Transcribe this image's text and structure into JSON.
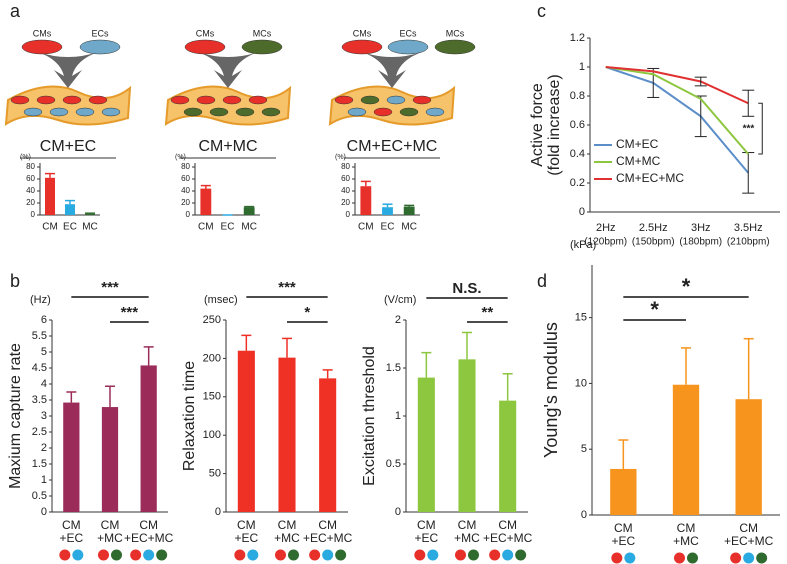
{
  "panel_labels": [
    "a",
    "b",
    "c",
    "d"
  ],
  "chart_data": [
    {
      "type": "bar",
      "title": "CM+EC",
      "cell_labels": [
        "CMs",
        "ECs"
      ],
      "ylabel": "(%)",
      "categories": [
        "CM",
        "EC",
        "MC"
      ],
      "values": [
        62,
        18,
        2
      ],
      "errors": [
        7,
        6,
        1
      ],
      "colors": [
        "#e8302a",
        "#29aae1",
        "#2f6b2f"
      ],
      "ylim": [
        0,
        80
      ],
      "yticks": [
        0,
        20,
        40,
        60,
        80
      ]
    },
    {
      "type": "bar",
      "title": "CM+MC",
      "cell_labels": [
        "CMs",
        "MCs"
      ],
      "ylabel": "(%)",
      "categories": [
        "CM",
        "EC",
        "MC"
      ],
      "values": [
        44,
        0,
        13
      ],
      "errors": [
        5,
        0,
        1
      ],
      "colors": [
        "#e8302a",
        "#29aae1",
        "#2f6b2f"
      ],
      "ylim": [
        0,
        80
      ],
      "yticks": [
        0,
        20,
        40,
        60,
        80
      ]
    },
    {
      "type": "bar",
      "title": "CM+EC+MC",
      "cell_labels": [
        "CMs",
        "ECs",
        "MCs"
      ],
      "ylabel": "(%)",
      "categories": [
        "CM",
        "EC",
        "MC"
      ],
      "values": [
        48,
        13,
        14
      ],
      "errors": [
        8,
        5,
        2
      ],
      "colors": [
        "#e8302a",
        "#29aae1",
        "#2f6b2f"
      ],
      "ylim": [
        0,
        80
      ],
      "yticks": [
        0,
        20,
        40,
        60,
        80
      ]
    },
    {
      "type": "line",
      "ylabel": [
        "Active force",
        "(fold increase)"
      ],
      "categories": [
        "2Hz",
        "2.5Hz",
        "3Hz",
        "3.5Hz"
      ],
      "category_notes": [
        "(120bpm)",
        "(150bpm)",
        "(180bpm)",
        "(210bpm)"
      ],
      "series": [
        {
          "name": "CM+EC",
          "color": "#5b8ec9",
          "values": [
            1,
            0.89,
            0.66,
            0.27
          ],
          "errors": [
            null,
            0.1,
            0.14,
            0.14
          ]
        },
        {
          "name": "CM+MC",
          "color": "#8dc63f",
          "values": [
            1,
            0.95,
            0.78,
            0.4
          ]
        },
        {
          "name": "CM+EC+MC",
          "color": "#e03030",
          "values": [
            1,
            0.97,
            0.9,
            0.75
          ],
          "errors": [
            null,
            null,
            0.03,
            0.09
          ]
        }
      ],
      "ylim": [
        0,
        1.2
      ],
      "yticks": [
        0,
        0.2,
        0.4,
        0.6,
        0.8,
        1,
        1.2
      ],
      "annotations": [
        "***"
      ]
    },
    {
      "type": "bar",
      "ylabel": "Maxium capture rate",
      "unit": "(Hz)",
      "categories": [
        [
          "CM",
          "+EC"
        ],
        [
          "CM",
          "+MC"
        ],
        [
          "CM",
          "+EC+MC"
        ]
      ],
      "values": [
        3.42,
        3.28,
        4.58
      ],
      "errors": [
        0.33,
        0.65,
        0.58
      ],
      "color": "#9b2c5a",
      "ylim": [
        0,
        6
      ],
      "yticks": [
        0,
        0.5,
        1,
        1.5,
        2,
        2.5,
        3,
        3.5,
        4,
        4.5,
        5,
        5.5,
        6
      ],
      "annotations": [
        "***",
        "***"
      ]
    },
    {
      "type": "bar",
      "ylabel": "Relaxation time",
      "unit": "(msec)",
      "categories": [
        [
          "CM",
          "+EC"
        ],
        [
          "CM",
          "+MC"
        ],
        [
          "CM",
          "+EC+MC"
        ]
      ],
      "values": [
        210,
        201,
        174
      ],
      "errors": [
        20,
        25,
        11
      ],
      "color": "#ee3124",
      "ylim": [
        0,
        250
      ],
      "yticks": [
        0,
        50,
        100,
        150,
        200,
        250
      ],
      "annotations": [
        "***",
        "*"
      ]
    },
    {
      "type": "bar",
      "ylabel": "Excitation threshold",
      "unit": "(V/cm)",
      "categories": [
        [
          "CM",
          "+EC"
        ],
        [
          "CM",
          "+MC"
        ],
        [
          "CM",
          "+EC+MC"
        ]
      ],
      "values": [
        1.4,
        1.59,
        1.16
      ],
      "errors": [
        0.26,
        0.28,
        0.28
      ],
      "color": "#8dc63f",
      "ylim": [
        0,
        2
      ],
      "yticks": [
        0,
        0.5,
        1,
        1.5,
        2
      ],
      "annotations": [
        "N.S.",
        "**"
      ]
    },
    {
      "type": "bar",
      "ylabel": "Young's modulus",
      "unit": "(kPa)",
      "categories": [
        [
          "CM",
          "+EC"
        ],
        [
          "CM",
          "+MC"
        ],
        [
          "CM",
          "+EC+MC"
        ]
      ],
      "values": [
        3.5,
        9.9,
        8.8
      ],
      "errors": [
        2.2,
        2.8,
        4.6
      ],
      "color": "#f7941d",
      "ylim": [
        0,
        19
      ],
      "yticks": [
        0,
        5,
        10,
        15
      ],
      "annotations": [
        "*",
        "*"
      ]
    }
  ]
}
